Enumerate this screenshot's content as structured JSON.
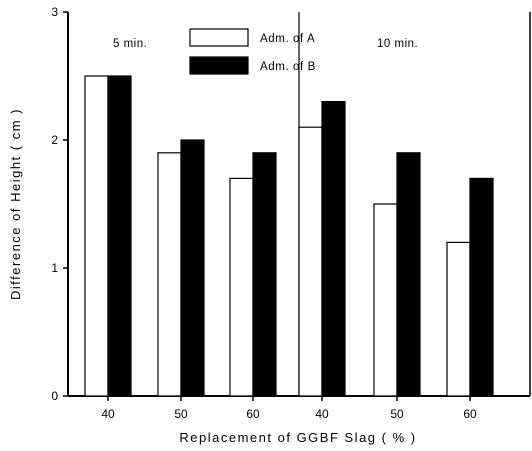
{
  "chart_data": {
    "type": "bar",
    "xlabel": "Replacement of GGBF Slag ( % )",
    "ylabel": "Difference of Height ( cm )",
    "ylim": [
      0,
      3
    ],
    "y_ticks": [
      "0",
      "1",
      "2",
      "3"
    ],
    "panels": [
      {
        "annotation": "5 min.",
        "categories": [
          "40",
          "50",
          "60"
        ],
        "series": [
          {
            "name": "Adm. of A",
            "values": [
              2.5,
              1.9,
              1.7
            ]
          },
          {
            "name": "Adm. of B",
            "values": [
              2.5,
              2.0,
              1.9
            ]
          }
        ]
      },
      {
        "annotation": "10 min.",
        "categories": [
          "40",
          "50",
          "60"
        ],
        "series": [
          {
            "name": "Adm. of A",
            "values": [
              2.1,
              1.5,
              1.2
            ]
          },
          {
            "name": "Adm. of B",
            "values": [
              2.3,
              1.9,
              1.7
            ]
          }
        ]
      }
    ],
    "legend": {
      "placement": "top-center",
      "entries": [
        {
          "label": "Adm. of A",
          "color": "#ffffff"
        },
        {
          "label": "Adm. of B",
          "color": "#000000"
        }
      ]
    },
    "colors": {
      "Adm. of A": "#ffffff",
      "Adm. of B": "#000000"
    },
    "grid": false
  }
}
